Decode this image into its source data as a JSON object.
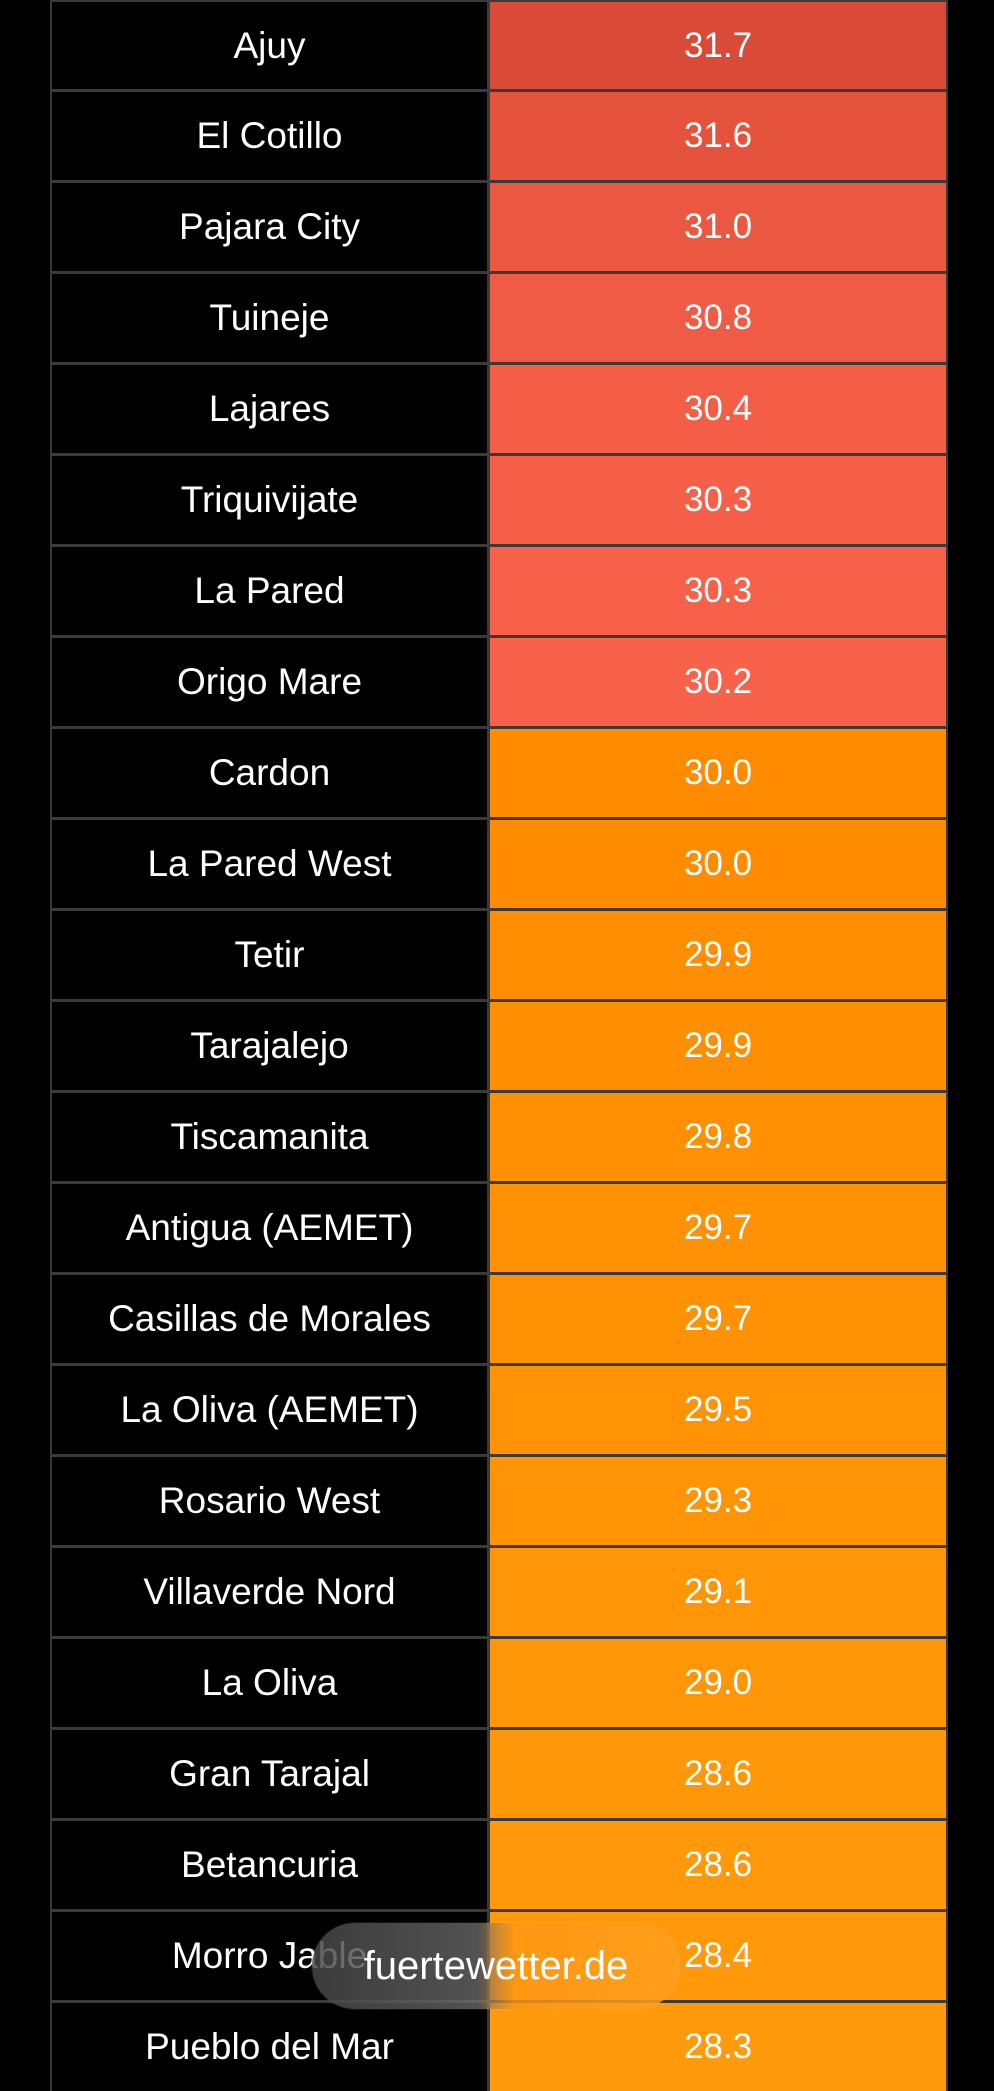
{
  "rows": [
    {
      "name": "Ajuy",
      "value": "31.7",
      "color": "#d94a37"
    },
    {
      "name": "El Cotillo",
      "value": "31.6",
      "color": "#e5533d"
    },
    {
      "name": "Pajara City",
      "value": "31.0",
      "color": "#ea5842"
    },
    {
      "name": "Tuineje",
      "value": "30.8",
      "color": "#ef5b45"
    },
    {
      "name": "Lajares",
      "value": "30.4",
      "color": "#f45e47"
    },
    {
      "name": "Triquivijate",
      "value": "30.3",
      "color": "#f65f48"
    },
    {
      "name": "La Pared",
      "value": "30.3",
      "color": "#f76049"
    },
    {
      "name": "Origo Mare",
      "value": "30.2",
      "color": "#f8614a"
    },
    {
      "name": "Cardon",
      "value": "30.0",
      "color": "#ff8c00"
    },
    {
      "name": "La Pared West",
      "value": "30.0",
      "color": "#ff8c00"
    },
    {
      "name": "Tetir",
      "value": "29.9",
      "color": "#ff8e02"
    },
    {
      "name": "Tarajalejo",
      "value": "29.9",
      "color": "#ff8f02"
    },
    {
      "name": "Tiscamanita",
      "value": "29.8",
      "color": "#ff9003"
    },
    {
      "name": "Antigua (AEMET)",
      "value": "29.7",
      "color": "#ff9104"
    },
    {
      "name": "Casillas de Morales",
      "value": "29.7",
      "color": "#ff9204"
    },
    {
      "name": "La Oliva (AEMET)",
      "value": "29.5",
      "color": "#ff9305"
    },
    {
      "name": "Rosario West",
      "value": "29.3",
      "color": "#ff9406"
    },
    {
      "name": "Villaverde Nord",
      "value": "29.1",
      "color": "#ff9507"
    },
    {
      "name": "La Oliva",
      "value": "29.0",
      "color": "#ff9608"
    },
    {
      "name": "Gran Tarajal",
      "value": "28.6",
      "color": "#ff9709"
    },
    {
      "name": "Betancuria",
      "value": "28.6",
      "color": "#ff980a"
    },
    {
      "name": "Morro Jable",
      "value": "28.4",
      "color": "#ff990b"
    },
    {
      "name": "Pueblo del Mar",
      "value": "28.3",
      "color": "#ff9a0c"
    }
  ],
  "watermark": {
    "text": "fuertewetter.de"
  }
}
